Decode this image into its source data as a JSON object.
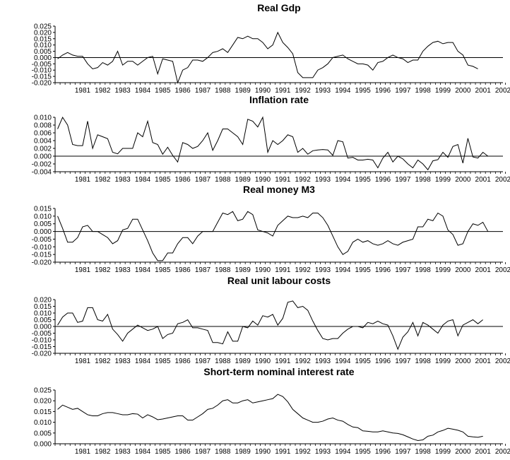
{
  "chart_data": [
    {
      "type": "line",
      "title": "Real Gdp",
      "ylim": [
        -0.02,
        0.025
      ],
      "yticks": [
        "0.025",
        "0.020",
        "0.015",
        "0.010",
        "0.005",
        "0.000",
        "-0.005",
        "-0.010",
        "-0.015",
        "-0.020"
      ],
      "x_start": 1980.25,
      "x_labels": [
        "1981",
        "1982",
        "1983",
        "1984",
        "1985",
        "1986",
        "1987",
        "1988",
        "1989",
        "1990",
        "1991",
        "1992",
        "1993",
        "1994",
        "1995",
        "1996",
        "1997",
        "1998",
        "1999",
        "2000",
        "2001",
        "2002"
      ],
      "zero_line": true,
      "values": [
        -0.001,
        0.002,
        0.004,
        0.002,
        0.001,
        0.001,
        -0.005,
        -0.009,
        -0.008,
        -0.004,
        -0.006,
        -0.003,
        0.005,
        -0.006,
        -0.003,
        -0.003,
        -0.006,
        -0.003,
        0.0,
        0.001,
        -0.013,
        -0.001,
        -0.002,
        -0.003,
        -0.02,
        -0.01,
        -0.008,
        -0.002,
        -0.002,
        -0.003,
        0.0,
        0.004,
        0.005,
        0.007,
        0.004,
        0.01,
        0.016,
        0.015,
        0.017,
        0.015,
        0.015,
        0.012,
        0.007,
        0.01,
        0.02,
        0.012,
        0.008,
        0.003,
        -0.012,
        -0.016,
        -0.016,
        -0.016,
        -0.01,
        -0.008,
        -0.005,
        0.0,
        0.001,
        0.002,
        -0.001,
        -0.003,
        -0.005,
        -0.005,
        -0.006,
        -0.01,
        -0.004,
        -0.003,
        0.0,
        0.002,
        0.0,
        -0.001,
        -0.004,
        -0.002,
        -0.002,
        0.005,
        0.009,
        0.012,
        0.013,
        0.011,
        0.012,
        0.012,
        0.005,
        0.002,
        -0.006,
        -0.007,
        -0.009
      ]
    },
    {
      "type": "line",
      "title": "Inflation rate",
      "ylim": [
        -0.004,
        0.01
      ],
      "yticks": [
        "0.010",
        "0.008",
        "0.006",
        "0.004",
        "0.002",
        "0.000",
        "-0.002",
        "-0.004"
      ],
      "x_start": 1980.25,
      "x_labels": [
        "1981",
        "1982",
        "1983",
        "1984",
        "1985",
        "1986",
        "1987",
        "1988",
        "1989",
        "1990",
        "1991",
        "1992",
        "1993",
        "1994",
        "1995",
        "1996",
        "1997",
        "1998",
        "1999",
        "2000",
        "2001",
        "2002"
      ],
      "zero_line": true,
      "values": [
        0.007,
        0.01,
        0.008,
        0.003,
        0.0027,
        0.0027,
        0.009,
        0.002,
        0.0055,
        0.005,
        0.0045,
        0.001,
        0.0006,
        0.002,
        0.002,
        0.002,
        0.006,
        0.005,
        0.009,
        0.0035,
        0.003,
        0.0005,
        0.0023,
        0.0002,
        -0.0015,
        0.0035,
        0.003,
        0.002,
        0.0025,
        0.004,
        0.006,
        0.0015,
        0.004,
        0.007,
        0.007,
        0.006,
        0.005,
        0.003,
        0.0095,
        0.009,
        0.0075,
        0.01,
        0.001,
        0.004,
        0.003,
        0.004,
        0.0055,
        0.005,
        0.001,
        0.002,
        0.0005,
        0.0014,
        0.0016,
        0.0017,
        0.0016,
        0.0002,
        0.004,
        0.0037,
        -0.0005,
        -0.0003,
        -0.001,
        -0.001,
        -0.0008,
        -0.001,
        -0.003,
        -0.0005,
        0.001,
        -0.0015,
        0.0,
        -0.0007,
        -0.002,
        -0.003,
        -0.001,
        -0.002,
        -0.0035,
        -0.0012,
        -0.0009,
        0.001,
        -0.0003,
        0.0025,
        0.003,
        -0.0018,
        0.0046,
        -0.0002,
        -0.0005,
        0.001,
        0.0
      ]
    },
    {
      "type": "line",
      "title": "Real money M3",
      "ylim": [
        -0.02,
        0.015
      ],
      "yticks": [
        "0.015",
        "0.010",
        "0.005",
        "0.000",
        "-0.005",
        "-0.010",
        "-0.015",
        "-0.020"
      ],
      "x_start": 1980.25,
      "x_labels": [
        "1981",
        "1982",
        "1983",
        "1984",
        "1985",
        "1986",
        "1987",
        "1988",
        "1989",
        "1990",
        "1991",
        "1992",
        "1993",
        "1994",
        "1995",
        "1996",
        "1997",
        "1998",
        "1999",
        "2000",
        "2001",
        "2002"
      ],
      "zero_line": true,
      "values": [
        0.01,
        0.002,
        -0.007,
        -0.007,
        -0.004,
        0.003,
        0.004,
        0.0,
        0.0,
        -0.002,
        -0.004,
        -0.008,
        -0.006,
        0.001,
        0.002,
        0.008,
        0.008,
        0.001,
        -0.006,
        -0.014,
        -0.019,
        -0.019,
        -0.014,
        -0.014,
        -0.008,
        -0.004,
        -0.004,
        -0.008,
        -0.003,
        0.0,
        0.0,
        0.0,
        0.006,
        0.012,
        0.011,
        0.013,
        0.007,
        0.008,
        0.013,
        0.011,
        0.001,
        0.0,
        -0.001,
        -0.003,
        0.004,
        0.007,
        0.01,
        0.009,
        0.009,
        0.01,
        0.009,
        0.012,
        0.012,
        0.009,
        0.004,
        -0.003,
        -0.01,
        -0.015,
        -0.013,
        -0.007,
        -0.005,
        -0.007,
        -0.006,
        -0.008,
        -0.009,
        -0.008,
        -0.006,
        -0.008,
        -0.009,
        -0.007,
        -0.006,
        -0.005,
        0.003,
        0.003,
        0.008,
        0.007,
        0.012,
        0.01,
        0.001,
        -0.002,
        -0.009,
        -0.008,
        0.0,
        0.005,
        0.004,
        0.006,
        0.0
      ]
    },
    {
      "type": "line",
      "title": "Real unit labour costs",
      "ylim": [
        -0.02,
        0.02
      ],
      "yticks": [
        "0.020",
        "0.015",
        "0.010",
        "0.005",
        "0.000",
        "-0.005",
        "-0.010",
        "-0.015",
        "-0.020"
      ],
      "x_start": 1980.25,
      "x_labels": [
        "1981",
        "1982",
        "1983",
        "1984",
        "1985",
        "1986",
        "1987",
        "1988",
        "1989",
        "1990",
        "1991",
        "1992",
        "1993",
        "1994",
        "1995",
        "1996",
        "1997",
        "1998",
        "1999",
        "2000",
        "2001",
        "2002"
      ],
      "zero_line": true,
      "values": [
        0.001,
        0.007,
        0.01,
        0.01,
        0.003,
        0.004,
        0.014,
        0.014,
        0.005,
        0.004,
        0.009,
        -0.002,
        -0.006,
        -0.011,
        -0.005,
        -0.002,
        0.001,
        -0.001,
        -0.003,
        -0.002,
        0.0,
        -0.009,
        -0.006,
        -0.005,
        0.002,
        0.003,
        0.005,
        -0.001,
        -0.001,
        -0.002,
        -0.003,
        -0.012,
        -0.012,
        -0.013,
        -0.004,
        -0.011,
        -0.011,
        0.0,
        -0.001,
        0.004,
        0.001,
        0.008,
        0.007,
        0.009,
        0.001,
        0.006,
        0.018,
        0.019,
        0.014,
        0.015,
        0.012,
        0.004,
        -0.003,
        -0.009,
        -0.01,
        -0.009,
        -0.009,
        -0.005,
        -0.002,
        0.0,
        0.0,
        -0.001,
        0.003,
        0.002,
        0.004,
        0.002,
        0.001,
        -0.007,
        -0.017,
        -0.008,
        -0.004,
        0.003,
        -0.007,
        0.003,
        0.001,
        -0.002,
        -0.005,
        0.001,
        0.004,
        0.005,
        -0.007,
        0.001,
        0.003,
        0.005,
        0.002,
        0.005
      ]
    },
    {
      "type": "line",
      "title": "Short-term nominal interest rate",
      "ylim": [
        0.0,
        0.025
      ],
      "yticks": [
        "0.025",
        "0.020",
        "0.015",
        "0.010",
        "0.005",
        "0.000"
      ],
      "x_start": 1980.25,
      "x_labels": [
        "1981",
        "1982",
        "1983",
        "1984",
        "1985",
        "1986",
        "1987",
        "1988",
        "1989",
        "1990",
        "1991",
        "1992",
        "1993",
        "1994",
        "1995",
        "1996",
        "1997",
        "1998",
        "1999",
        "2000",
        "2001",
        "2002"
      ],
      "zero_line": false,
      "values": [
        0.016,
        0.018,
        0.017,
        0.016,
        0.0165,
        0.015,
        0.0135,
        0.013,
        0.013,
        0.014,
        0.0145,
        0.0145,
        0.014,
        0.0135,
        0.0135,
        0.014,
        0.0138,
        0.012,
        0.0135,
        0.0125,
        0.0112,
        0.0115,
        0.012,
        0.0125,
        0.013,
        0.013,
        0.011,
        0.011,
        0.0125,
        0.014,
        0.016,
        0.0165,
        0.018,
        0.02,
        0.0205,
        0.019,
        0.019,
        0.02,
        0.0205,
        0.019,
        0.0195,
        0.02,
        0.0205,
        0.021,
        0.023,
        0.022,
        0.0195,
        0.016,
        0.014,
        0.012,
        0.011,
        0.01,
        0.01,
        0.0105,
        0.0115,
        0.012,
        0.011,
        0.0105,
        0.009,
        0.0078,
        0.0075,
        0.006,
        0.0058,
        0.0055,
        0.0055,
        0.006,
        0.0055,
        0.005,
        0.0048,
        0.0042,
        0.0032,
        0.0022,
        0.0015,
        0.0018,
        0.0035,
        0.004,
        0.0055,
        0.0062,
        0.0072,
        0.0068,
        0.0063,
        0.0055,
        0.0035,
        0.0032,
        0.003,
        0.0035
      ]
    }
  ]
}
